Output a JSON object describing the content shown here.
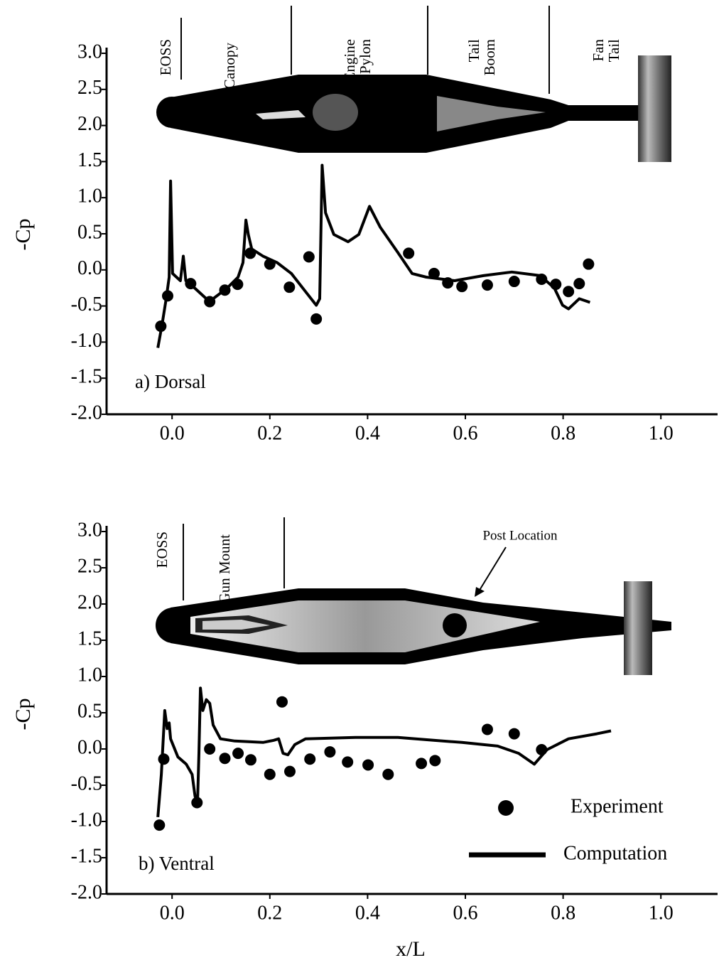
{
  "chart_data": [
    {
      "type": "line",
      "panel_label": "a) Dorsal",
      "y_label": "-Cp",
      "annotations": [
        {
          "text": [
            "EOSS"
          ]
        },
        {
          "text": [
            "Canopy"
          ]
        },
        {
          "text": [
            "Engine",
            "Pylon"
          ]
        },
        {
          "text": [
            "Tail",
            "Boom"
          ]
        },
        {
          "text": [
            "Fan",
            "Tail"
          ]
        }
      ],
      "xlim": [
        -0.134,
        1.116
      ],
      "ylim": [
        -2,
        3
      ],
      "xticks": [
        {
          "value": 0,
          "label": "0.0"
        },
        0.2,
        0.4,
        0.6,
        0.8,
        {
          "value": 1,
          "label": "1.0"
        }
      ],
      "yticks": [
        {
          "value": 3,
          "label": "3.0"
        },
        2.5,
        {
          "value": 2,
          "label": "2.0"
        },
        1.5,
        {
          "value": 1,
          "label": "1.0"
        },
        0.5,
        {
          "value": 0,
          "label": "0.0"
        },
        -0.5,
        {
          "value": -1,
          "label": "-1.0"
        },
        -1.5,
        {
          "value": -2,
          "label": "-2.0"
        }
      ],
      "series": [
        {
          "style": "markers",
          "color": "#000000",
          "x": [
            -0.023,
            -0.009,
            0.038,
            0.077,
            0.108,
            0.134,
            0.16,
            0.2,
            0.24,
            0.28,
            0.295,
            0.484,
            0.536,
            0.564,
            0.593,
            0.645,
            0.7,
            0.756,
            0.785,
            0.811,
            0.833,
            0.852
          ],
          "values": [
            -0.78,
            -0.36,
            -0.19,
            -0.44,
            -0.28,
            -0.2,
            0.23,
            0.08,
            -0.24,
            0.18,
            -0.68,
            0.23,
            -0.05,
            -0.18,
            -0.23,
            -0.21,
            -0.16,
            -0.13,
            -0.2,
            -0.3,
            -0.19,
            0.08
          ]
        },
        {
          "style": "line",
          "color": "#000000",
          "x": [
            -0.029,
            -0.02,
            -0.012,
            -0.006,
            -0.003,
            0.001,
            0.009,
            0.017,
            0.023,
            0.028,
            0.038,
            0.07,
            0.084,
            0.113,
            0.135,
            0.145,
            0.151,
            0.156,
            0.163,
            0.186,
            0.215,
            0.244,
            0.273,
            0.295,
            0.302,
            0.307,
            0.314,
            0.331,
            0.36,
            0.382,
            0.404,
            0.426,
            0.462,
            0.491,
            0.52,
            0.578,
            0.637,
            0.695,
            0.753,
            0.782,
            0.799,
            0.811,
            0.833,
            0.855
          ],
          "values": [
            -1.08,
            -0.74,
            -0.4,
            -0.1,
            1.23,
            -0.05,
            -0.1,
            -0.15,
            0.19,
            -0.15,
            -0.2,
            -0.4,
            -0.4,
            -0.25,
            -0.1,
            0.1,
            0.69,
            0.49,
            0.29,
            0.19,
            0.1,
            -0.05,
            -0.3,
            -0.49,
            -0.4,
            1.45,
            0.79,
            0.49,
            0.39,
            0.49,
            0.88,
            0.59,
            0.24,
            -0.05,
            -0.1,
            -0.15,
            -0.08,
            -0.03,
            -0.08,
            -0.25,
            -0.49,
            -0.54,
            -0.4,
            -0.45
          ]
        }
      ]
    },
    {
      "type": "line",
      "panel_label": "b) Ventral",
      "y_label": "-Cp",
      "x_label": "x/L",
      "annotations": [
        {
          "text": [
            "EOSS"
          ]
        },
        {
          "text": [
            "Gun Mount"
          ]
        },
        {
          "text": [
            "Post Location"
          ]
        }
      ],
      "legend": "lower right",
      "xlim": [
        -0.134,
        1.116
      ],
      "ylim": [
        -2,
        3
      ],
      "xticks": [
        {
          "value": 0,
          "label": "0.0"
        },
        0.2,
        0.4,
        0.6,
        0.8,
        {
          "value": 1,
          "label": "1.0"
        }
      ],
      "yticks": [
        {
          "value": 3,
          "label": "3.0"
        },
        2.5,
        {
          "value": 2,
          "label": "2.0"
        },
        1.5,
        {
          "value": 1,
          "label": "1.0"
        },
        0.5,
        {
          "value": 0,
          "label": "0.0"
        },
        -0.5,
        {
          "value": -1,
          "label": "-1.0"
        },
        -1.5,
        {
          "value": -2,
          "label": "-2.0"
        }
      ],
      "series": [
        {
          "name": "Experiment",
          "style": "markers",
          "color": "#000000",
          "x": [
            -0.026,
            -0.017,
            0.051,
            0.077,
            0.108,
            0.135,
            0.161,
            0.2,
            0.225,
            0.241,
            0.282,
            0.323,
            0.359,
            0.401,
            0.442,
            0.51,
            0.538,
            0.645,
            0.7,
            0.756
          ],
          "values": [
            -1.05,
            -0.14,
            -0.74,
            0,
            -0.13,
            -0.06,
            -0.15,
            -0.35,
            0.65,
            -0.31,
            -0.14,
            -0.04,
            -0.18,
            -0.22,
            -0.35,
            -0.2,
            -0.16,
            0.27,
            0.21,
            -0.01
          ]
        },
        {
          "name": "Computation",
          "style": "line",
          "color": "#000000",
          "x": [
            -0.029,
            -0.022,
            -0.015,
            -0.01,
            -0.006,
            -0.003,
            0.012,
            0.029,
            0.041,
            0.047,
            0.052,
            0.055,
            0.058,
            0.063,
            0.07,
            0.077,
            0.084,
            0.099,
            0.128,
            0.186,
            0.208,
            0.218,
            0.227,
            0.237,
            0.251,
            0.273,
            0.375,
            0.462,
            0.535,
            0.593,
            0.666,
            0.709,
            0.741,
            0.767,
            0.811,
            0.869,
            0.898
          ],
          "values": [
            -0.94,
            -0.35,
            0.53,
            0.28,
            0.36,
            0.14,
            -0.11,
            -0.21,
            -0.35,
            -0.65,
            -0.75,
            -0.06,
            0.84,
            0.53,
            0.68,
            0.63,
            0.33,
            0.14,
            0.11,
            0.09,
            0.12,
            0.14,
            -0.06,
            -0.08,
            0.06,
            0.14,
            0.16,
            0.16,
            0.12,
            0.09,
            0.04,
            -0.06,
            -0.21,
            -0.01,
            0.14,
            0.21,
            0.25
          ]
        }
      ]
    }
  ]
}
